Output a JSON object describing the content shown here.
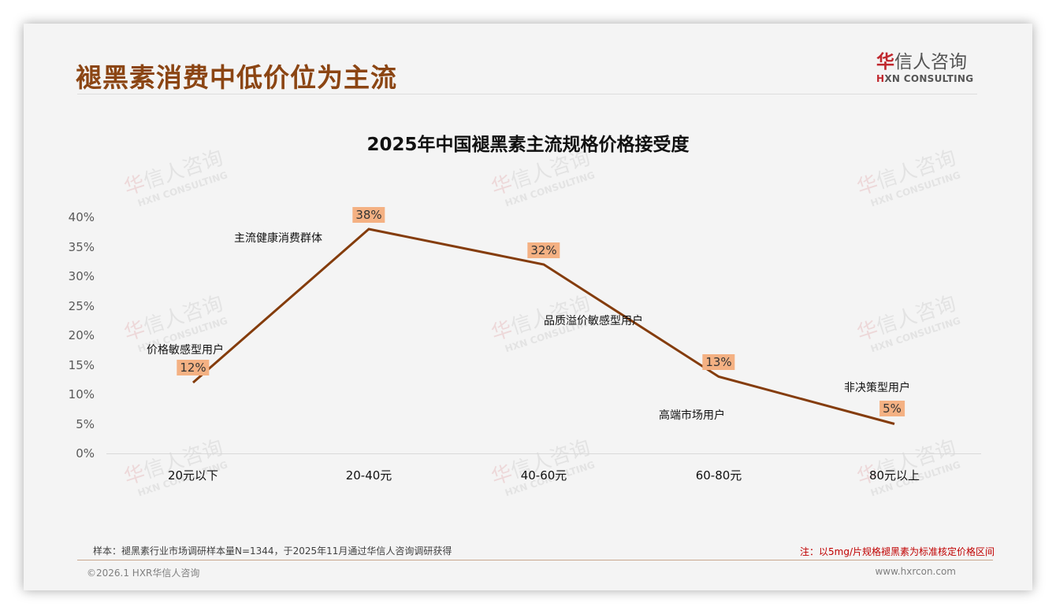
{
  "header": {
    "title": "褪黑素消费中低价位为主流",
    "logo": {
      "brand_mark": "华",
      "brand_rest": "信人咨询",
      "english_mark": "H",
      "english_rest": "XN CONSULTING"
    }
  },
  "watermark": {
    "cn_mark": "华",
    "cn_rest": "信人咨询",
    "en": "HXN CONSULTING"
  },
  "chart_data": {
    "type": "line",
    "title": "2025年中国褪黑素主流规格价格接受度",
    "xlabel": "",
    "ylabel": "",
    "categories": [
      "20元以下",
      "20-40元",
      "40-60元",
      "60-80元",
      "80元以上"
    ],
    "values": [
      12,
      38,
      32,
      13,
      5
    ],
    "value_labels": [
      "12%",
      "38%",
      "32%",
      "13%",
      "5%"
    ],
    "segment_annotations": [
      "价格敏感型用户",
      "主流健康消费群体",
      "品质溢价敏感型用户",
      "高端市场用户",
      "非决策型用户"
    ],
    "yticks": [
      "0%",
      "5%",
      "10%",
      "15%",
      "20%",
      "25%",
      "30%",
      "35%",
      "40%"
    ],
    "ylim": [
      0,
      40
    ],
    "grid": false,
    "legend": "none",
    "line_color": "#843c0c",
    "label_bg_color": "#f4b183"
  },
  "footer": {
    "sample_note": "样本：褪黑素行业市场调研样本量N=1344，于2025年11月通过华信人咨询调研获得",
    "price_note": "注：以5mg/片规格褪黑素为标准核定价格区间",
    "copyright": "©2026.1 HXR华信人咨询",
    "website": "www.hxrcon.com"
  },
  "colors": {
    "title": "#8b4513",
    "brand_red": "#c0282e",
    "note_red": "#c00000"
  }
}
